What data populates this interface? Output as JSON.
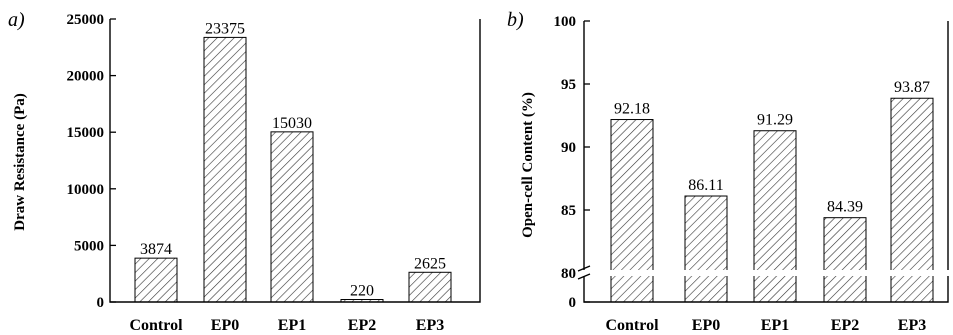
{
  "chart_data": [
    {
      "type": "bar",
      "panel_label": "a)",
      "categories": [
        "Control",
        "EP0",
        "EP1",
        "EP2",
        "EP3"
      ],
      "values": [
        3874,
        23375,
        15030,
        220,
        2625
      ],
      "data_labels": [
        "3874",
        "23375",
        "15030",
        "220",
        "2625"
      ],
      "ylabel": "Draw Resistance (Pa)",
      "ylim": [
        0,
        25000
      ],
      "yticks": [
        0,
        5000,
        10000,
        15000,
        20000,
        25000
      ],
      "pattern": "diagonal-hatch",
      "grid": false,
      "legend": "none"
    },
    {
      "type": "bar",
      "panel_label": "b)",
      "categories": [
        "Control",
        "EP0",
        "EP1",
        "EP2",
        "EP3"
      ],
      "values": [
        92.18,
        86.11,
        91.29,
        84.39,
        93.87
      ],
      "data_labels": [
        "92.18",
        "86.11",
        "91.29",
        "84.39",
        "93.87"
      ],
      "ylabel": "Open-cell Content (%)",
      "ylim": [
        0,
        100
      ],
      "axis_break": [
        0,
        80
      ],
      "yticks": [
        0,
        80,
        85,
        90,
        95,
        100
      ],
      "pattern": "diagonal-hatch",
      "grid": false,
      "legend": "none"
    }
  ]
}
